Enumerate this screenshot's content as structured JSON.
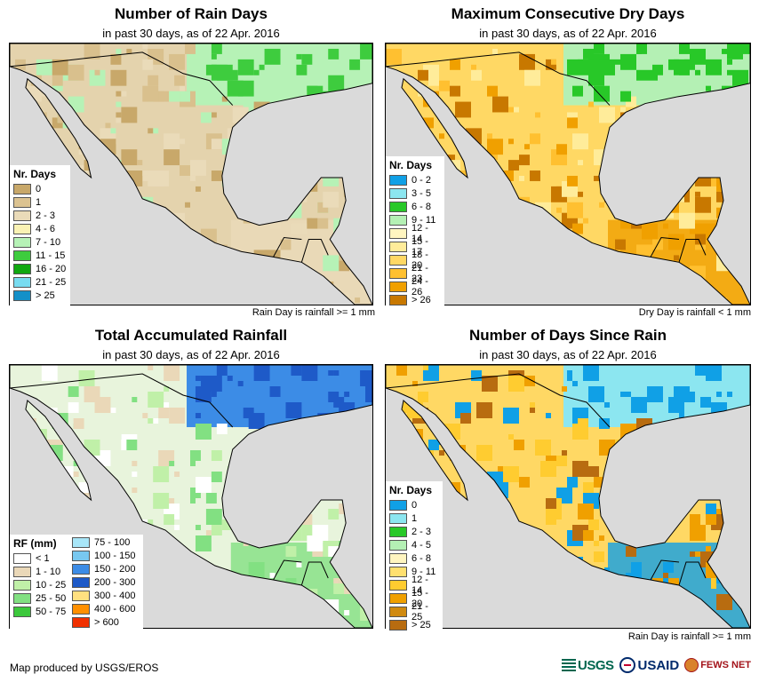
{
  "panels": [
    {
      "id": "rain-days",
      "title": "Number of Rain Days",
      "subtitle": "in past 30 days, as of 22 Apr. 2016",
      "note": "Rain Day is rainfall >= 1 mm",
      "legend_title": "Nr. Days",
      "legend": [
        {
          "label": "0",
          "color": "#c8a86a"
        },
        {
          "label": "1",
          "color": "#dcc391"
        },
        {
          "label": "2 - 3",
          "color": "#eadbb9"
        },
        {
          "label": "4 - 6",
          "color": "#faf2b4"
        },
        {
          "label": "7 - 10",
          "color": "#b6f2b6"
        },
        {
          "label": "11 - 15",
          "color": "#3ecc3e"
        },
        {
          "label": "16 - 20",
          "color": "#10a810"
        },
        {
          "label": "21 - 25",
          "color": "#78dcf0"
        },
        {
          "label": "> 25",
          "color": "#1490c8"
        }
      ],
      "land_color": "#e4d3ad",
      "patch_colors": [
        "#d9c08d",
        "#c8a86a",
        "#eadbb9",
        "#b6f2b6"
      ],
      "north_color": "#b6f2b6",
      "north_accent": "#3ecc3e",
      "south_color": "#eadbb9"
    },
    {
      "id": "dry-days",
      "title": "Maximum Consecutive Dry Days",
      "subtitle": "in past 30 days, as of 22 Apr. 2016",
      "note": "Dry Day is rainfall < 1 mm",
      "legend_title": "Nr. Days",
      "legend": [
        {
          "label": "0 - 2",
          "color": "#10a0e6"
        },
        {
          "label": "3 - 5",
          "color": "#8ce6f0"
        },
        {
          "label": "6 - 8",
          "color": "#28c828"
        },
        {
          "label": "9 - 11",
          "color": "#b4f0b4"
        },
        {
          "label": "12 - 14",
          "color": "#fff5c0"
        },
        {
          "label": "15 - 17",
          "color": "#ffec9a"
        },
        {
          "label": "18 - 20",
          "color": "#ffd864"
        },
        {
          "label": "21 - 23",
          "color": "#ffc030"
        },
        {
          "label": "24 - 26",
          "color": "#f0a000"
        },
        {
          "label": "> 26",
          "color": "#c87800"
        }
      ],
      "land_color": "#ffd864",
      "patch_colors": [
        "#f0a000",
        "#ffc030",
        "#c87800",
        "#ffec9a"
      ],
      "north_color": "#b4f0b4",
      "north_accent": "#28c828",
      "south_color": "#f0a000"
    },
    {
      "id": "total-rainfall",
      "title": "Total Accumulated Rainfall",
      "subtitle": "in past 30 days, as of 22 Apr. 2016",
      "note": "",
      "legend_title": "RF (mm)",
      "legend": [
        {
          "label": "< 1",
          "color": "#ffffff"
        },
        {
          "label": "1 - 10",
          "color": "#ead8b8"
        },
        {
          "label": "10 - 25",
          "color": "#c0f0a8"
        },
        {
          "label": "25 - 50",
          "color": "#82e082"
        },
        {
          "label": "50 - 75",
          "color": "#3cc83c"
        },
        {
          "label": "75 - 100",
          "color": "#a8e6f8"
        },
        {
          "label": "100 - 150",
          "color": "#78c8f0"
        },
        {
          "label": "150 - 200",
          "color": "#3c8ce6"
        },
        {
          "label": "200 - 300",
          "color": "#1e5ac8"
        },
        {
          "label": "300 - 400",
          "color": "#ffe080"
        },
        {
          "label": "400 - 600",
          "color": "#ff9000"
        },
        {
          "label": "> 600",
          "color": "#f03000"
        }
      ],
      "land_color": "#e8f4dc",
      "patch_colors": [
        "#c0f0a8",
        "#ffffff",
        "#82e082",
        "#ead8b8"
      ],
      "north_color": "#3c8ce6",
      "north_accent": "#1e5ac8",
      "south_color": "#82e082"
    },
    {
      "id": "days-since-rain",
      "title": "Number of Days Since Rain",
      "subtitle": "in past 30 days, as of 22 Apr. 2016",
      "note": "Rain Day is rainfall >= 1 mm",
      "legend_title": "Nr. Days",
      "legend": [
        {
          "label": "0",
          "color": "#10a0e6"
        },
        {
          "label": "1",
          "color": "#8ce6f0"
        },
        {
          "label": "2 - 3",
          "color": "#28c828"
        },
        {
          "label": "4 - 5",
          "color": "#b4f0b4"
        },
        {
          "label": "6 - 8",
          "color": "#fff5c0"
        },
        {
          "label": "9 - 11",
          "color": "#ffe070"
        },
        {
          "label": "12 - 14",
          "color": "#ffcc30"
        },
        {
          "label": "15 - 20",
          "color": "#f0a000"
        },
        {
          "label": "21 - 25",
          "color": "#d08a10"
        },
        {
          "label": "> 25",
          "color": "#b86c10"
        }
      ],
      "land_color": "#ffd864",
      "patch_colors": [
        "#f0a000",
        "#10a0e6",
        "#ffcc30",
        "#b86c10"
      ],
      "north_color": "#8ce6f0",
      "north_accent": "#10a0e6",
      "south_color": "#10a0e6"
    }
  ],
  "footer": {
    "credit": "Map produced by USGS/EROS",
    "logos": [
      "USGS",
      "USAID",
      "FEWS NET"
    ]
  },
  "colors": {
    "ocean": "#dadada",
    "border": "#000000"
  }
}
